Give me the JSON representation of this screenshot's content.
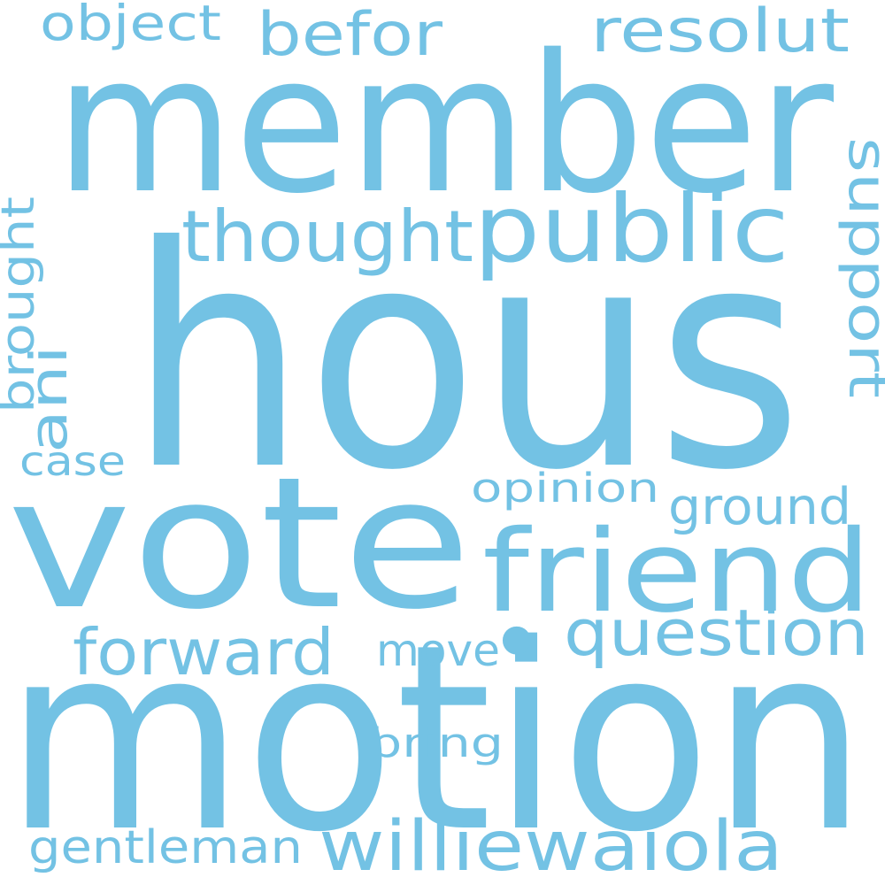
{
  "word_cloud": {
    "color": "#73c2e4",
    "background": "#ffffff",
    "words": [
      {
        "text": "hous"
      },
      {
        "text": "motion"
      },
      {
        "text": "member"
      },
      {
        "text": "vote"
      },
      {
        "text": "friend"
      },
      {
        "text": "public"
      },
      {
        "text": "thought"
      },
      {
        "text": "williewaiola"
      },
      {
        "text": "question"
      },
      {
        "text": "forward"
      },
      {
        "text": "resolut"
      },
      {
        "text": "befor"
      },
      {
        "text": "support"
      },
      {
        "text": "ground"
      },
      {
        "text": "object"
      },
      {
        "text": "gentleman"
      },
      {
        "text": "brought"
      },
      {
        "text": "move"
      },
      {
        "text": "opinion"
      },
      {
        "text": "bring"
      },
      {
        "text": "ani"
      },
      {
        "text": "case"
      },
      {
        "text": "•"
      }
    ]
  }
}
